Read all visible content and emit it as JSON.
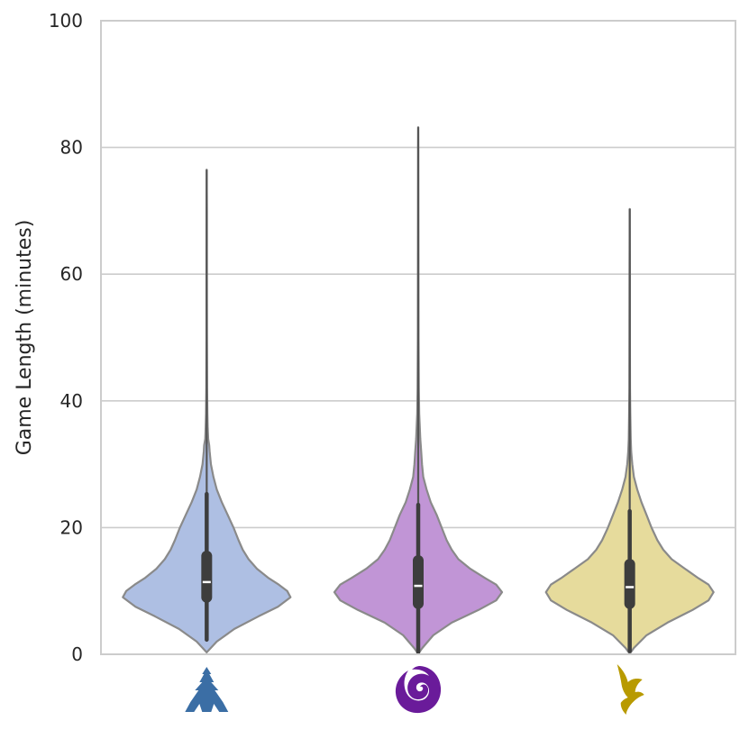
{
  "chart_data": {
    "type": "violin",
    "title": "",
    "xlabel": "",
    "ylabel": "Game Length (minutes)",
    "ylim": [
      0,
      100
    ],
    "yticks": [
      0,
      20,
      40,
      60,
      80,
      100
    ],
    "grid": "horizontal",
    "legend": "none",
    "categories": [
      "terran",
      "zerg",
      "protoss"
    ],
    "category_icons": [
      "terran-icon",
      "zerg-icon",
      "protoss-icon"
    ],
    "series": [
      {
        "category": "terran",
        "color": "#aebfe3",
        "icon_color": "#3b6ea5",
        "min": 2.3,
        "q1": 9.0,
        "median": 11.4,
        "q3": 15.5,
        "whisker_high": 25.3,
        "max": 76.5,
        "density_y": [
          0.3,
          2,
          4,
          6,
          7.5,
          9,
          10,
          11,
          12,
          13.5,
          15,
          16.5,
          18,
          20,
          22,
          24,
          26,
          28,
          30,
          32,
          33,
          34,
          36,
          38,
          42,
          50,
          60,
          70,
          76.5
        ],
        "density_w": [
          0.0,
          0.12,
          0.33,
          0.62,
          0.85,
          1.0,
          0.96,
          0.86,
          0.74,
          0.6,
          0.5,
          0.43,
          0.38,
          0.32,
          0.25,
          0.18,
          0.12,
          0.08,
          0.05,
          0.035,
          0.03,
          0.018,
          0.012,
          0.008,
          0.005,
          0.003,
          0.002,
          0.0015,
          0.0
        ]
      },
      {
        "category": "zerg",
        "color": "#c195d6",
        "icon_color": "#6a1b9a",
        "min": 0.3,
        "q1": 8.0,
        "median": 10.8,
        "q3": 14.8,
        "whisker_high": 23.6,
        "max": 83.2,
        "density_y": [
          0.1,
          1,
          3,
          5,
          7,
          8.5,
          9.8,
          11,
          12,
          13.5,
          15,
          16.5,
          18,
          20,
          22,
          24,
          26,
          28,
          30,
          32,
          34,
          36,
          38,
          42,
          50,
          60,
          70,
          80,
          83.2
        ],
        "density_w": [
          0.0,
          0.05,
          0.18,
          0.4,
          0.72,
          0.93,
          1.0,
          0.93,
          0.8,
          0.62,
          0.48,
          0.4,
          0.34,
          0.28,
          0.22,
          0.15,
          0.1,
          0.06,
          0.045,
          0.035,
          0.025,
          0.018,
          0.012,
          0.007,
          0.004,
          0.003,
          0.002,
          0.0015,
          0.0
        ]
      },
      {
        "category": "protoss",
        "color": "#e6db9c",
        "icon_color": "#b89a00",
        "min": 0.5,
        "q1": 8.0,
        "median": 10.6,
        "q3": 14.2,
        "whisker_high": 22.6,
        "max": 70.3,
        "density_y": [
          0.1,
          1,
          3,
          5,
          7,
          8.5,
          9.8,
          11,
          12,
          13.5,
          15,
          16.5,
          18,
          20,
          22,
          24,
          26,
          28,
          30,
          32,
          34,
          38,
          42,
          50,
          60,
          70.3
        ],
        "density_w": [
          0.0,
          0.05,
          0.2,
          0.45,
          0.75,
          0.94,
          1.0,
          0.94,
          0.82,
          0.66,
          0.5,
          0.4,
          0.33,
          0.26,
          0.2,
          0.14,
          0.09,
          0.05,
          0.03,
          0.018,
          0.012,
          0.007,
          0.004,
          0.003,
          0.002,
          0.0
        ]
      }
    ]
  }
}
